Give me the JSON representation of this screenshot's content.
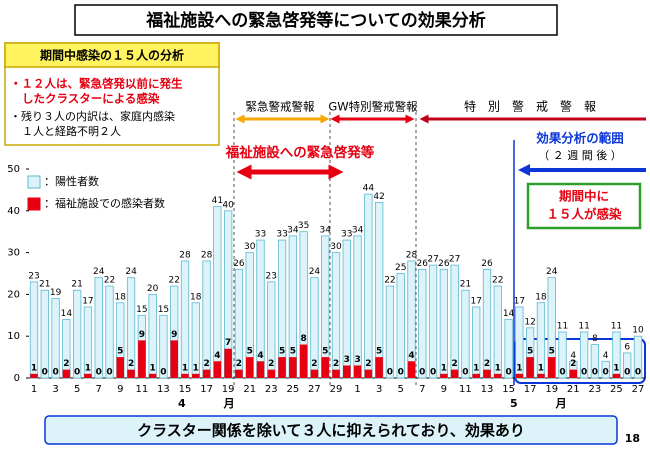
{
  "title": "福祉施設への緊急啓発等についての効果分析",
  "analysis_box": {
    "header": "期間中感染の１５人の分析",
    "red_lines": [
      "・１２人は、緊急啓発以前に発生",
      "したクラスターによる感染"
    ],
    "lines": [
      "・残り３人の内訳は、家庭内感染",
      "１人と経路不明２人"
    ]
  },
  "periods": [
    "緊急警戒警報",
    "GW特別警戒警報",
    "特　別　警　戒　警　報"
  ],
  "campaign": "福祉施設への緊急啓発等",
  "effect_range": [
    "効果分析の範囲",
    "（ ２ 週 間 後 ）"
  ],
  "infected_box": [
    "期間中に",
    "１５人が感染"
  ],
  "conclusion": "クラスター関係を除いて３人に抑えられており、効果あり",
  "page_number": "18",
  "chart_data": {
    "type": "bar",
    "categories": [
      "1",
      null,
      "3",
      null,
      "5",
      null,
      "7",
      null,
      "9",
      null,
      "11",
      null,
      "13",
      null,
      "15",
      null,
      "17",
      null,
      "19",
      null,
      "21",
      null,
      "23",
      null,
      "25",
      null,
      "27",
      null,
      "29",
      null,
      "1",
      null,
      "3",
      null,
      "5",
      null,
      "7",
      null,
      "9",
      null,
      "11",
      null,
      "13",
      null,
      "15",
      null,
      "17",
      null,
      "19",
      null,
      "21",
      null,
      "23",
      null,
      "25",
      null,
      "27"
    ],
    "x_group_labels": [
      "4月",
      "5月"
    ],
    "series": [
      {
        "name": "：陽性者数",
        "color": "#dcf3fa",
        "values": [
          23,
          21,
          19,
          14,
          21,
          17,
          24,
          22,
          18,
          24,
          15,
          20,
          15,
          22,
          28,
          18,
          28,
          41,
          40,
          26,
          30,
          33,
          23,
          33,
          34,
          35,
          24,
          34,
          30,
          33,
          34,
          44,
          42,
          22,
          25,
          28,
          26,
          27,
          26,
          27,
          21,
          17,
          26,
          22,
          14,
          17,
          12,
          18,
          24,
          11,
          4,
          11,
          8,
          4,
          11,
          6,
          10
        ]
      },
      {
        "name": "：福祉施設での感染者数",
        "color": "#e60012",
        "values": [
          1,
          0,
          0,
          2,
          0,
          1,
          0,
          0,
          5,
          2,
          9,
          1,
          0,
          9,
          1,
          1,
          2,
          4,
          7,
          2,
          5,
          4,
          2,
          5,
          5,
          8,
          2,
          5,
          2,
          3,
          3,
          2,
          5,
          0,
          0,
          4,
          0,
          0,
          1,
          2,
          0,
          1,
          2,
          1,
          0,
          1,
          5,
          1,
          5,
          0,
          2,
          0,
          0,
          0,
          1,
          0,
          0
        ]
      }
    ],
    "ylim": [
      0,
      50
    ],
    "yticks": [
      0,
      10,
      20,
      30,
      40,
      50
    ],
    "grid": false
  }
}
